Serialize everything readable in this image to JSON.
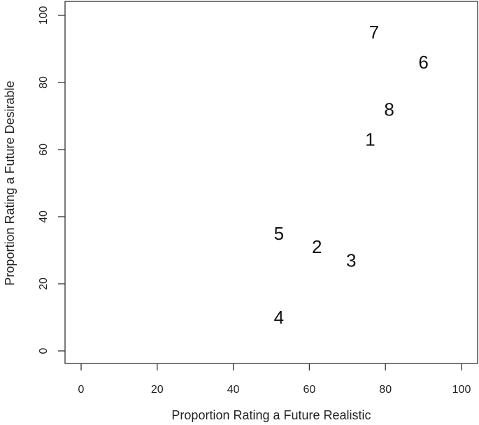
{
  "chart_data": {
    "type": "scatter",
    "title": "",
    "xlabel": "Proportion Rating a Future Realistic",
    "ylabel": "Proportion Rating a Future Desirable",
    "xlim": [
      0,
      100
    ],
    "ylim": [
      0,
      100
    ],
    "x_ticks": [
      0,
      20,
      40,
      60,
      80,
      100
    ],
    "y_ticks": [
      0,
      20,
      40,
      60,
      80,
      100
    ],
    "grid": false,
    "legend": "none",
    "points": [
      {
        "label": "1",
        "x": 76,
        "y": 63
      },
      {
        "label": "2",
        "x": 62,
        "y": 31
      },
      {
        "label": "3",
        "x": 71,
        "y": 27
      },
      {
        "label": "4",
        "x": 52,
        "y": 10
      },
      {
        "label": "5",
        "x": 52,
        "y": 35
      },
      {
        "label": "6",
        "x": 90,
        "y": 86
      },
      {
        "label": "7",
        "x": 77,
        "y": 95
      },
      {
        "label": "8",
        "x": 81,
        "y": 72
      }
    ]
  }
}
